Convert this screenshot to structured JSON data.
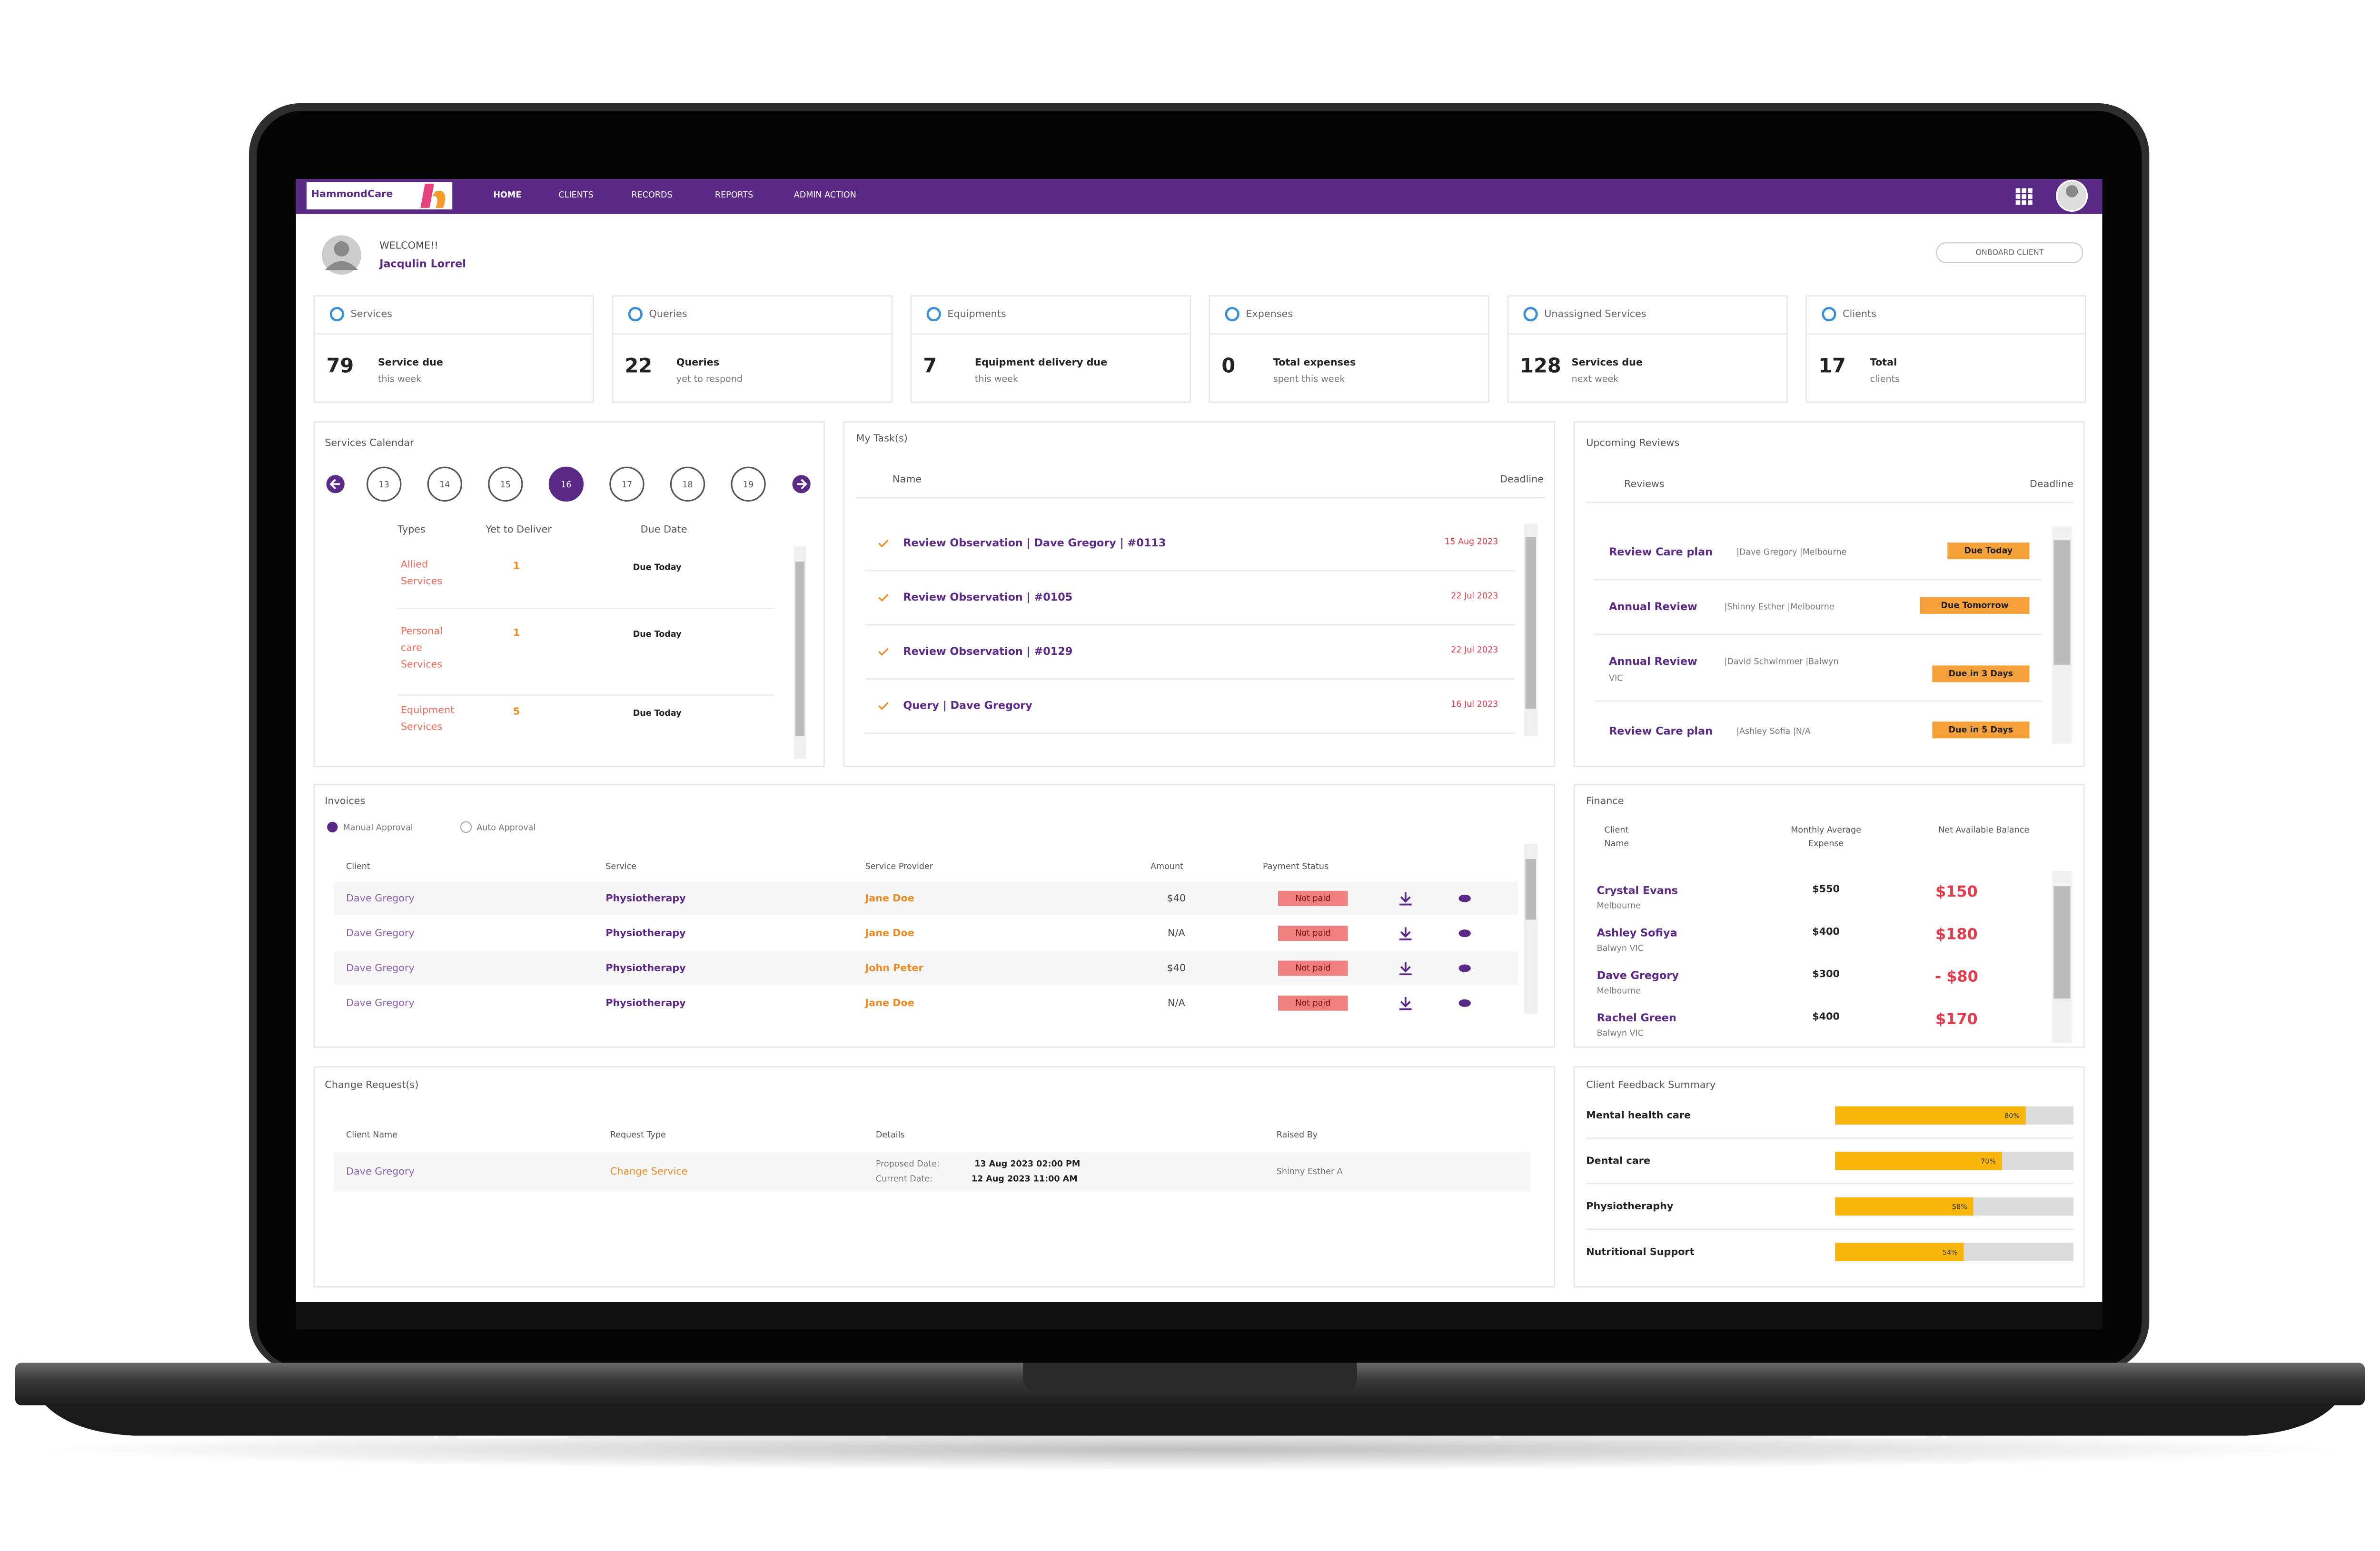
{
  "header": {
    "logo": "HammondCare",
    "nav": [
      "HOME",
      "CLIENTS",
      "RECORDS",
      "REPORTS",
      "ADMIN ACTION"
    ]
  },
  "welcome": {
    "greeting": "WELCOME!!",
    "name": "Jacqulin Lorrel",
    "button": "ONBOARD CLIENT"
  },
  "stats": [
    {
      "title": "Services",
      "value": "79",
      "label": "Service due",
      "sub": "this week"
    },
    {
      "title": "Queries",
      "value": "22",
      "label": "Queries",
      "sub": "yet to respond"
    },
    {
      "title": "Equipments",
      "value": "7",
      "label": "Equipment delivery due",
      "sub": "this week"
    },
    {
      "title": "Expenses",
      "value": "0",
      "label": "Total expenses",
      "sub": "spent this week"
    },
    {
      "title": "Unassigned Services",
      "value": "128",
      "label": "Services due",
      "sub": "next week"
    },
    {
      "title": "Clients",
      "value": "17",
      "label": "Total",
      "sub": "clients"
    }
  ],
  "calendar": {
    "title": "Services Calendar",
    "dates": [
      "13",
      "14",
      "15",
      "16",
      "17",
      "18",
      "19"
    ],
    "columns": [
      "Types",
      "Yet to Deliver",
      "Due Date"
    ],
    "rows": [
      {
        "type": [
          "Allied",
          "Services"
        ],
        "count": "1",
        "due": "Due Today"
      },
      {
        "type": [
          "Personal",
          "care",
          "Services"
        ],
        "count": "1",
        "due": "Due Today"
      },
      {
        "type": [
          "Equipment",
          "Services"
        ],
        "count": "5",
        "due": "Due Today"
      }
    ]
  },
  "tasks": {
    "title": "My Task(s)",
    "columns": [
      "Name",
      "Deadline"
    ],
    "rows": [
      {
        "name": "Review Observation | Dave Gregory | #0113",
        "deadline": "15 Aug 2023"
      },
      {
        "name": "Review Observation | #0105",
        "deadline": "22 Jul 2023"
      },
      {
        "name": "Review Observation | #0129",
        "deadline": "22 Jul 2023"
      },
      {
        "name": "Query | Dave Gregory",
        "deadline": "16 Jul 2023"
      }
    ]
  },
  "reviews": {
    "title": "Upcoming Reviews",
    "columns": [
      "Reviews",
      "Deadline"
    ],
    "rows": [
      {
        "name": "Review Care plan",
        "details": [
          "|Dave Gregory |Melbourne"
        ],
        "badge": "Due Today"
      },
      {
        "name": "Annual Review",
        "details": [
          "|Shinny Esther |Melbourne"
        ],
        "badge": "Due Tomorrow"
      },
      {
        "name": "Annual Review",
        "details": [
          "|David Schwimmer |Balwyn",
          "VIC"
        ],
        "badge": "Due in 3 Days"
      },
      {
        "name": "Review Care plan",
        "details": [
          "|Ashley Sofia |N/A"
        ],
        "badge": "Due in 5 Days"
      }
    ]
  },
  "invoices": {
    "title": "Invoices",
    "options": [
      "Manual Approval",
      "Auto Approval"
    ],
    "columns": [
      "Client",
      "Service",
      "Service Provider",
      "Amount",
      "Payment Status"
    ],
    "rows": [
      {
        "client": "Dave Gregory",
        "service": "Physiotherapy",
        "provider": "Jane Doe",
        "amount": "$40",
        "status": "Not paid"
      },
      {
        "client": "Dave Gregory",
        "service": "Physiotherapy",
        "provider": "Jane Doe",
        "amount": "N/A",
        "status": "Not paid"
      },
      {
        "client": "Dave Gregory",
        "service": "Physiotherapy",
        "provider": "John Peter",
        "amount": "$40",
        "status": "Not paid"
      },
      {
        "client": "Dave Gregory",
        "service": "Physiotherapy",
        "provider": "Jane Doe",
        "amount": "N/A",
        "status": "Not paid"
      }
    ]
  },
  "finance": {
    "title": "Finance",
    "columns": [
      [
        "Client",
        "Name"
      ],
      [
        "Monthly Average",
        "Expense"
      ],
      [
        "Net Available Balance"
      ]
    ],
    "rows": [
      {
        "name": "Crystal Evans",
        "location": "Melbourne",
        "expense": "$550",
        "balance": "$150"
      },
      {
        "name": "Ashley Sofiya",
        "location": "Balwyn VIC",
        "expense": "$400",
        "balance": "$180"
      },
      {
        "name": "Dave Gregory",
        "location": "Melbourne",
        "expense": "$300",
        "balance": "- $80"
      },
      {
        "name": "Rachel Green",
        "location": "Balwyn VIC",
        "expense": "$400",
        "balance": "$170"
      }
    ]
  },
  "changes": {
    "title": "Change Request(s)",
    "columns": [
      "Client Name",
      "Request Type",
      "Details",
      "Raised By"
    ],
    "rows": [
      {
        "client": "Dave Gregory",
        "type": "Change Service",
        "proposed_label": "Proposed Date:",
        "proposed": "13 Aug 2023 02:00 PM",
        "current_label": "Current Date:",
        "current": "12 Aug 2023 11:00 AM",
        "raised_by": "Shinny Esther A"
      }
    ]
  },
  "feedback": {
    "title": "Client Feedback Summary",
    "items": [
      "Mental health care",
      "Dental care",
      "Physiotheraphy",
      "Nutritional Support"
    ],
    "values": [
      80,
      70,
      58,
      54
    ],
    "value_labels": [
      "80%",
      "70%",
      "58%",
      "54%"
    ]
  }
}
